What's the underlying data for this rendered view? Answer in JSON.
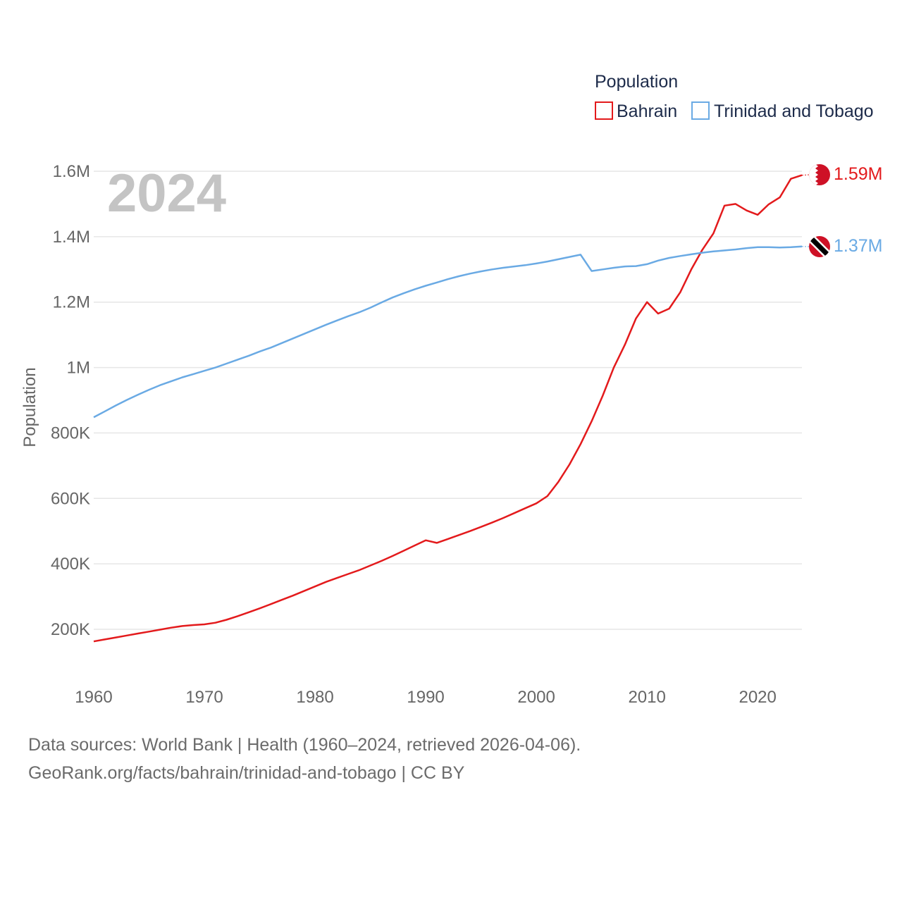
{
  "footer": {
    "line1": "Data sources: World Bank | Health (1960–2024, retrieved 2026-04-06).",
    "line2": "GeoRank.org/facts/bahrain/trinidad-and-tobago | CC BY"
  },
  "chart_data": {
    "type": "line",
    "title": "Population",
    "year_label": "2024",
    "ylabel": "Population",
    "xlabel": "",
    "xlim": [
      1960,
      2024
    ],
    "ylim": [
      100000,
      1600000
    ],
    "x_ticks": [
      "1960",
      "1970",
      "1980",
      "1990",
      "2000",
      "2010",
      "2020"
    ],
    "x_tick_values": [
      1960,
      1970,
      1980,
      1990,
      2000,
      2010,
      2020
    ],
    "y_ticks": [
      "200K",
      "400K",
      "600K",
      "800K",
      "1M",
      "1.2M",
      "1.4M",
      "1.6M"
    ],
    "y_tick_values": [
      200000,
      400000,
      600000,
      800000,
      1000000,
      1200000,
      1400000,
      1600000
    ],
    "grid": true,
    "legend_title": "Population",
    "legend_position": "top-right",
    "x": [
      1960,
      1961,
      1962,
      1963,
      1964,
      1965,
      1966,
      1967,
      1968,
      1969,
      1970,
      1971,
      1972,
      1973,
      1974,
      1975,
      1976,
      1977,
      1978,
      1979,
      1980,
      1981,
      1982,
      1983,
      1984,
      1985,
      1986,
      1987,
      1988,
      1989,
      1990,
      1991,
      1992,
      1993,
      1994,
      1995,
      1996,
      1997,
      1998,
      1999,
      2000,
      2001,
      2002,
      2003,
      2004,
      2005,
      2006,
      2007,
      2008,
      2009,
      2010,
      2011,
      2012,
      2013,
      2014,
      2015,
      2016,
      2017,
      2018,
      2019,
      2020,
      2021,
      2022,
      2023,
      2024
    ],
    "series": [
      {
        "name": "Bahrain",
        "color": "#e31a1c",
        "end_label": "1.59M",
        "flag": "bahrain-flag",
        "values": [
          163000,
          169000,
          175000,
          181000,
          187000,
          193000,
          199000,
          205000,
          210000,
          213000,
          215000,
          220000,
          229000,
          240000,
          252000,
          264000,
          277000,
          290000,
          303000,
          317000,
          331000,
          345000,
          357000,
          369000,
          381000,
          395000,
          409000,
          424000,
          440000,
          456000,
          472000,
          464000,
          476000,
          488000,
          500000,
          513000,
          526000,
          540000,
          555000,
          570000,
          585000,
          607000,
          651000,
          704000,
          766000,
          836000,
          914000,
          1000000,
          1070000,
          1150000,
          1200000,
          1165000,
          1180000,
          1230000,
          1300000,
          1360000,
          1410000,
          1495000,
          1500000,
          1480000,
          1467000,
          1499000,
          1520000,
          1577000,
          1588000
        ]
      },
      {
        "name": "Trinidad and Tobago",
        "color": "#6aaae4",
        "end_label": "1.37M",
        "flag": "trinidad-and-tobago-flag",
        "values": [
          848000,
          866000,
          884000,
          901000,
          917000,
          932000,
          946000,
          958000,
          970000,
          980000,
          990000,
          1000000,
          1012000,
          1024000,
          1036000,
          1049000,
          1061000,
          1075000,
          1089000,
          1103000,
          1117000,
          1131000,
          1144000,
          1157000,
          1169000,
          1183000,
          1199000,
          1214000,
          1227000,
          1239000,
          1250000,
          1260000,
          1270000,
          1279000,
          1287000,
          1294000,
          1300000,
          1305000,
          1309000,
          1313000,
          1318000,
          1324000,
          1331000,
          1338000,
          1345000,
          1295000,
          1300000,
          1305000,
          1309000,
          1310000,
          1316000,
          1327000,
          1335000,
          1341000,
          1346000,
          1351000,
          1355000,
          1358000,
          1361000,
          1365000,
          1368000,
          1368000,
          1367000,
          1368000,
          1370000
        ]
      }
    ]
  }
}
